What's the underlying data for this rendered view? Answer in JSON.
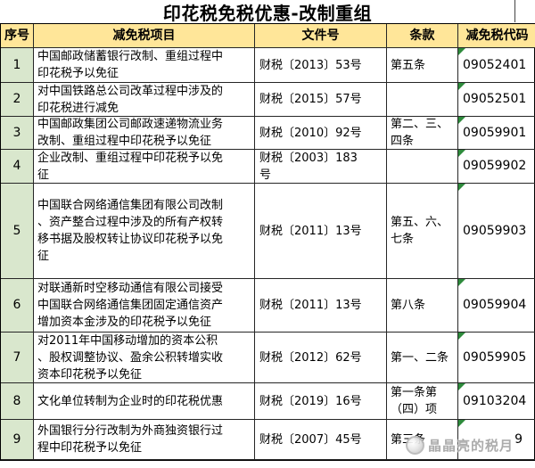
{
  "title": "印花税免税优惠-改制重组",
  "colors": {
    "header_bg": "#FFE699",
    "index_col_bg": "#D9E7CD",
    "error_triangle_green": "#2E8B3C",
    "watermark_gray": "#A8A8A8"
  },
  "watermark": {
    "text": "晶晶亮的税月"
  },
  "table": {
    "headers": [
      "序号",
      "减免税项目",
      "文件号",
      "条款",
      "减免税代码"
    ],
    "rows": [
      {
        "no": "1",
        "project": "中国邮政储蓄银行改制、重组过程中\n印花税予以免征",
        "doc": "财税〔2013〕53号",
        "clause": "第五条",
        "code": "09052401"
      },
      {
        "no": "2",
        "project": "对中国铁路总公司改革过程中涉及的\n印花税进行减免",
        "doc": "财税〔2015〕57号",
        "clause": "",
        "code": "09052501"
      },
      {
        "no": "3",
        "project": "中国邮政集团公司邮政速递物流业务\n改制、重组过程中印花税予以免征",
        "doc": "财税〔2010〕92号",
        "clause": "第二、三、\n四条",
        "code": "09059901"
      },
      {
        "no": "4",
        "project": "企业改制、重组过程中印花税予以免\n征",
        "doc": "财税〔2003〕183\n号",
        "clause": "",
        "code": "09059902"
      },
      {
        "no": "5",
        "project": "中国联合网络通信集团有限公司改制\n、资产整合过程中涉及的所有产权转\n移书据及股权转让协议印花税予以免\n征",
        "doc": "财税〔2011〕13号",
        "clause": "第五、六、\n七条",
        "code": "09059903"
      },
      {
        "no": "6",
        "project": "对联通新时空移动通信有限公司接受\n中国联合网络通信集团固定通信资产\n增加资本金涉及的印花税予以免征",
        "doc": "财税〔2011〕13号",
        "clause": "第八条",
        "code": "09059904"
      },
      {
        "no": "7",
        "project": "对2011年中国移动增加的资本公积\n、股权调整协议、盈余公积转增实收\n资本印花税予以免征",
        "doc": "财税〔2012〕62号",
        "clause": "第一、二条",
        "code": "09059905"
      },
      {
        "no": "8",
        "project": "文化单位转制为企业时的印花税优惠",
        "doc": "财税〔2019〕16号",
        "clause": "第一条第\n（四）项",
        "code": "09103204"
      },
      {
        "no": "9",
        "project": "外国银行分行改制为外商独资银行过\n程中印花税予以免征",
        "doc": "财税〔2007〕45号",
        "clause": "第三条",
        "code": "9"
      }
    ]
  }
}
